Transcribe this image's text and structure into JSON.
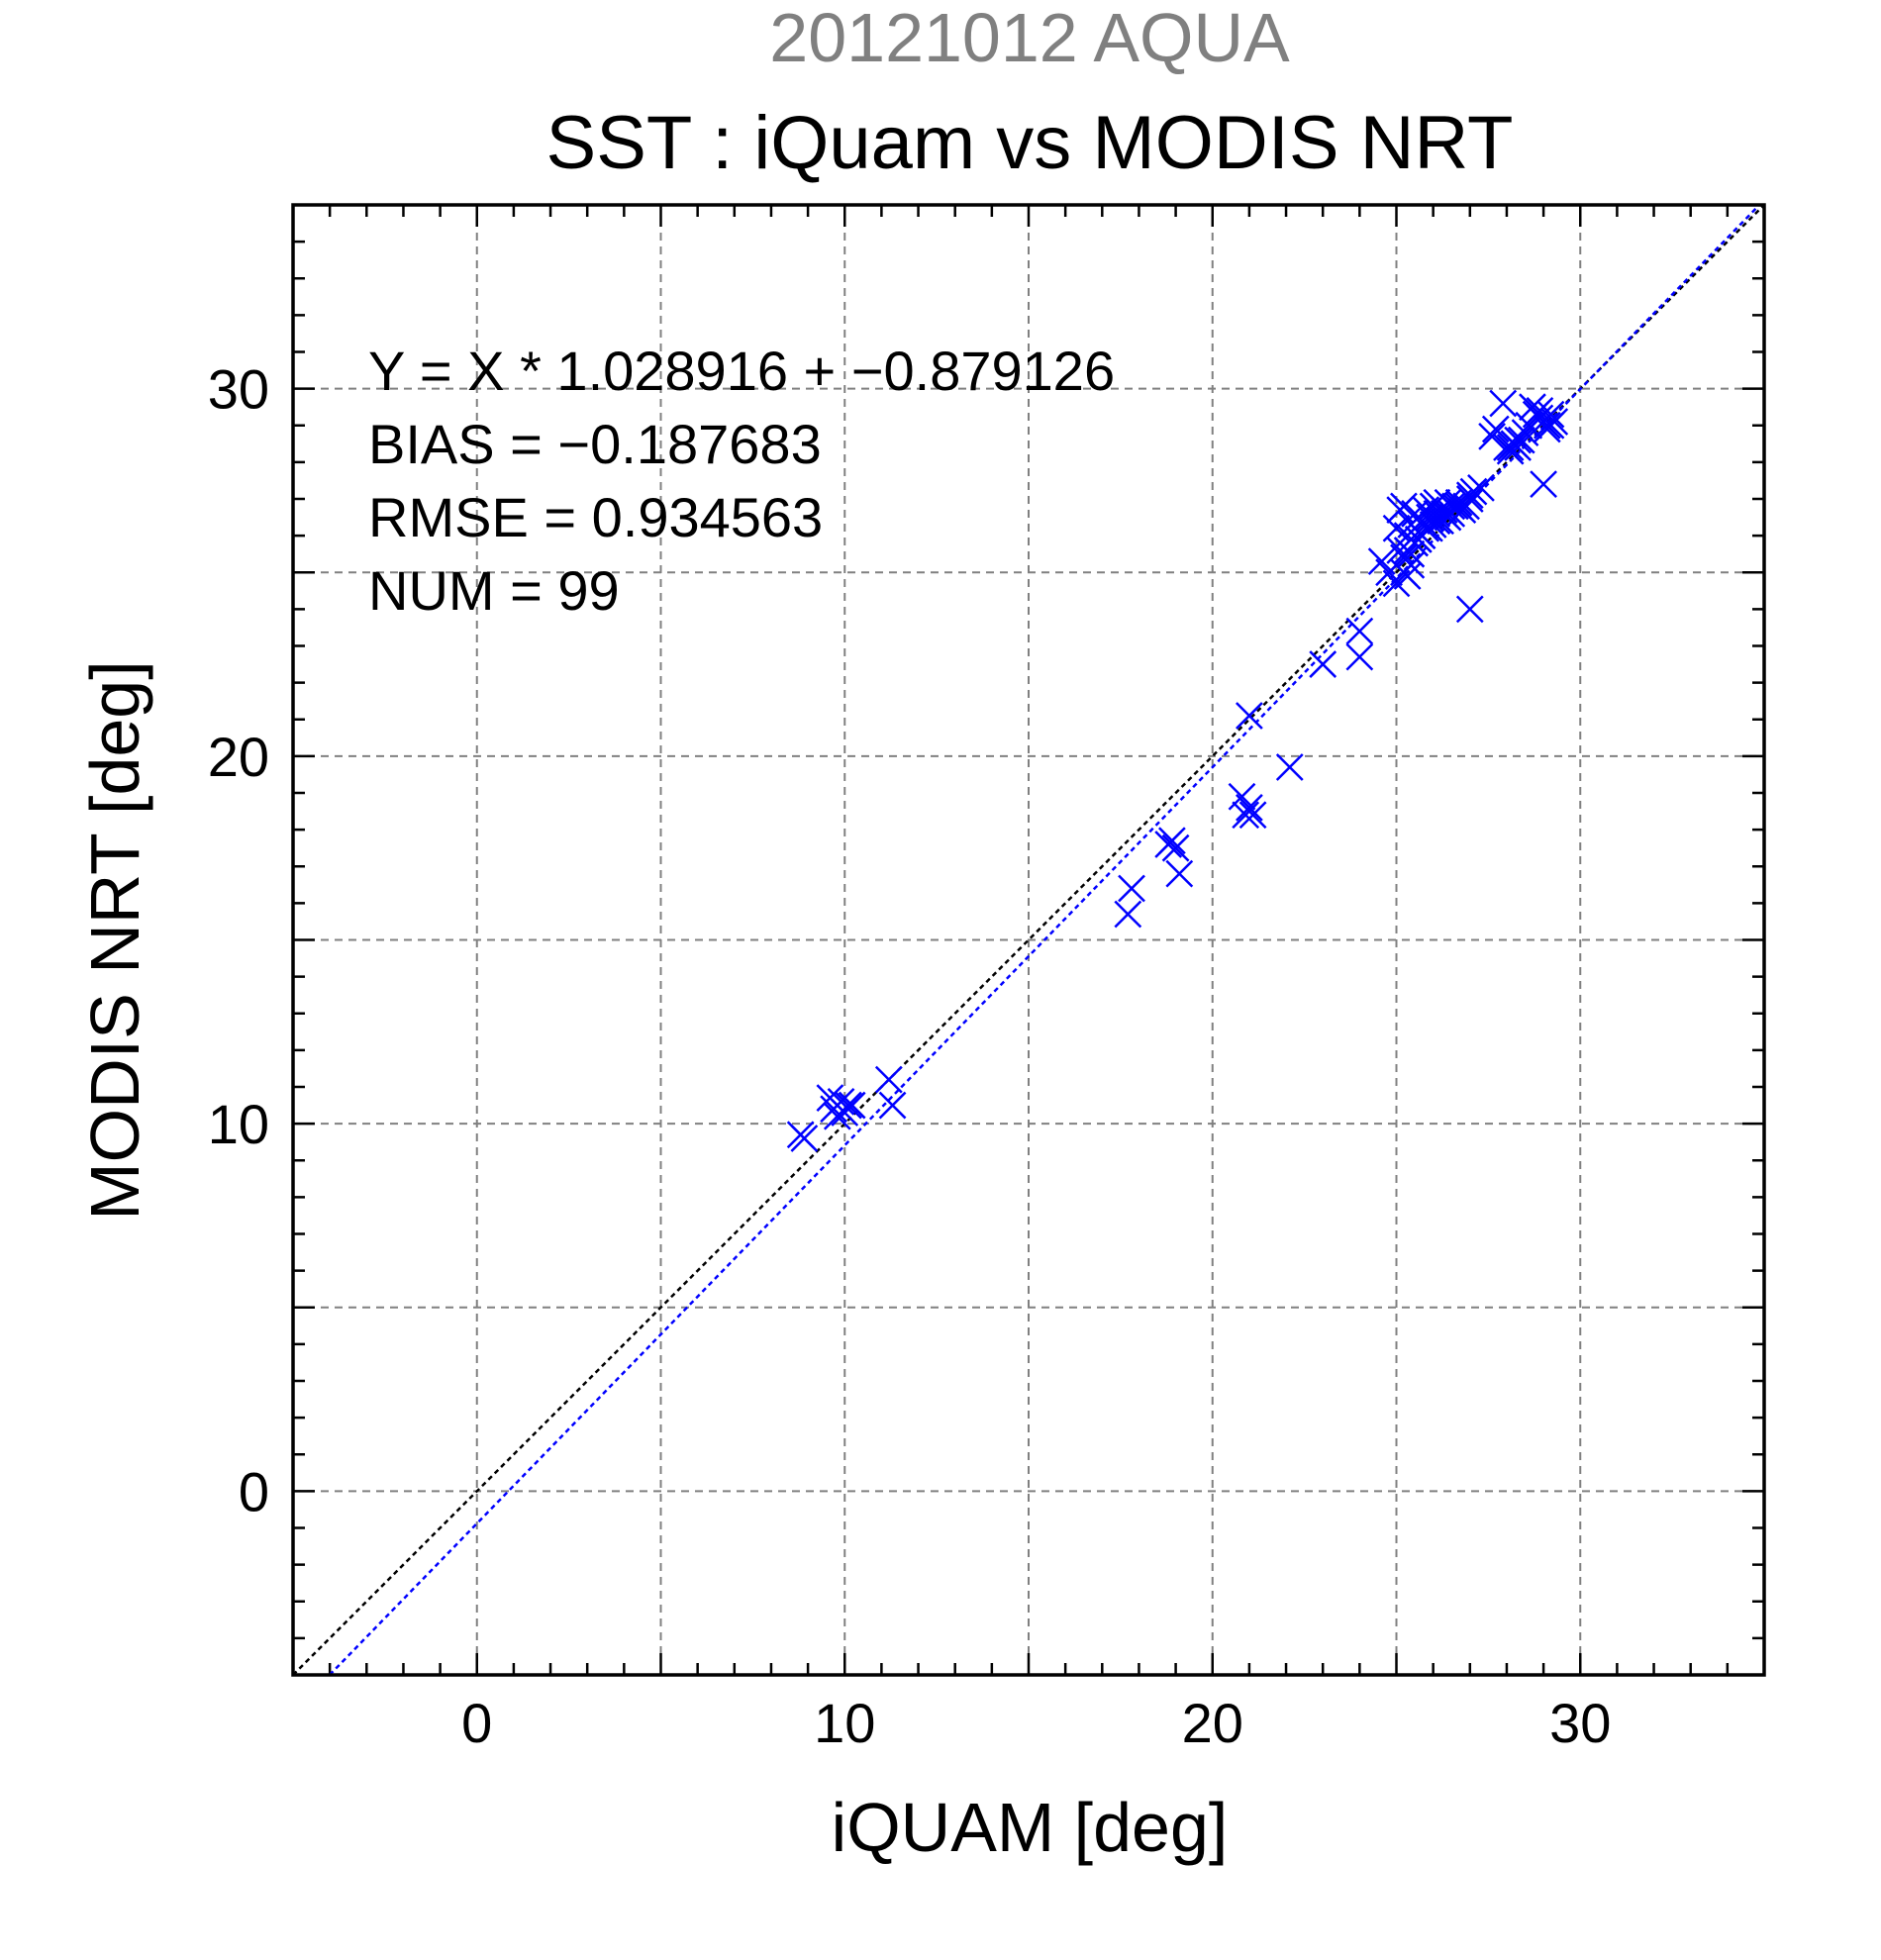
{
  "chart_data": {
    "type": "scatter",
    "suptitle": "20121012 AQUA",
    "title": "SST : iQuam vs MODIS NRT",
    "xlabel": "iQUAM [deg]",
    "ylabel": "MODIS NRT [deg]",
    "xlim": [
      -5,
      35
    ],
    "ylim": [
      -5,
      35
    ],
    "xticks": [
      0,
      10,
      20,
      30
    ],
    "yticks": [
      0,
      10,
      20,
      30
    ],
    "grid": true,
    "stats": [
      "Y = X * 1.028916 + −0.879126",
      "BIAS = −0.187683",
      "RMSE = 0.934563",
      "NUM = 99"
    ],
    "fit": {
      "slope": 1.028916,
      "intercept": -0.879126
    },
    "colors": {
      "points": "#0000ff",
      "fit_line": "#0000ff",
      "identity_line": "#000000",
      "suptitle": "#808080"
    },
    "series": [
      {
        "marker": "x",
        "x": [
          8.8,
          8.9,
          9.6,
          9.7,
          9.8,
          9.9,
          10.0,
          10.1,
          10.2,
          11.2,
          11.3,
          17.7,
          17.8,
          18.8,
          18.9,
          19.0,
          19.1,
          20.8,
          20.9,
          21.0,
          21.0,
          21.1,
          22.1,
          23.0,
          24.0,
          24.0,
          24.6,
          24.8,
          25.0,
          25.0,
          25.1,
          25.1,
          25.2,
          25.2,
          25.3,
          25.3,
          25.4,
          25.4,
          25.5,
          25.5,
          25.6,
          25.6,
          25.7,
          25.7,
          25.8,
          25.8,
          25.9,
          26.0,
          26.0,
          26.1,
          26.1,
          26.2,
          26.3,
          26.4,
          26.5,
          26.6,
          26.7,
          26.8,
          26.9,
          27.0,
          27.0,
          27.1,
          27.3,
          27.0,
          27.7,
          27.9,
          28.0,
          28.1,
          28.2,
          28.3,
          28.4,
          28.5,
          28.6,
          28.7,
          28.8,
          28.9,
          29.0,
          29.1,
          29.2,
          29.2,
          29.3,
          29.0,
          25.3,
          25.5,
          25.7,
          25.9,
          26.1,
          26.3,
          26.5,
          25.2,
          25.4,
          28.1,
          28.3,
          28.9,
          29.1,
          27.6,
          26.4,
          26.7,
          25.6
        ],
        "y": [
          9.7,
          9.6,
          10.7,
          10.4,
          10.2,
          10.6,
          10.3,
          10.5,
          10.5,
          11.2,
          10.5,
          15.7,
          16.4,
          17.6,
          17.7,
          17.5,
          16.8,
          18.9,
          18.4,
          18.6,
          21.1,
          18.4,
          19.7,
          22.5,
          23.4,
          22.7,
          25.3,
          25.0,
          24.7,
          26.2,
          26.7,
          25.6,
          25.4,
          26.8,
          24.9,
          26.0,
          25.5,
          26.3,
          25.8,
          26.6,
          25.9,
          26.1,
          26.4,
          26.0,
          26.2,
          26.7,
          26.5,
          26.3,
          26.8,
          26.6,
          26.9,
          26.4,
          26.7,
          26.9,
          26.6,
          26.8,
          26.9,
          26.7,
          26.8,
          27.0,
          27.1,
          27.2,
          27.3,
          24.0,
          28.9,
          29.6,
          28.4,
          28.3,
          28.5,
          28.4,
          28.6,
          28.8,
          29.0,
          29.5,
          29.3,
          29.4,
          29.1,
          28.9,
          29.0,
          29.3,
          29.1,
          27.4,
          25.6,
          25.8,
          26.0,
          26.2,
          26.4,
          26.6,
          26.8,
          25.0,
          25.2,
          28.4,
          28.6,
          29.2,
          29.0,
          28.7,
          26.5,
          26.8,
          25.9
        ]
      }
    ]
  }
}
